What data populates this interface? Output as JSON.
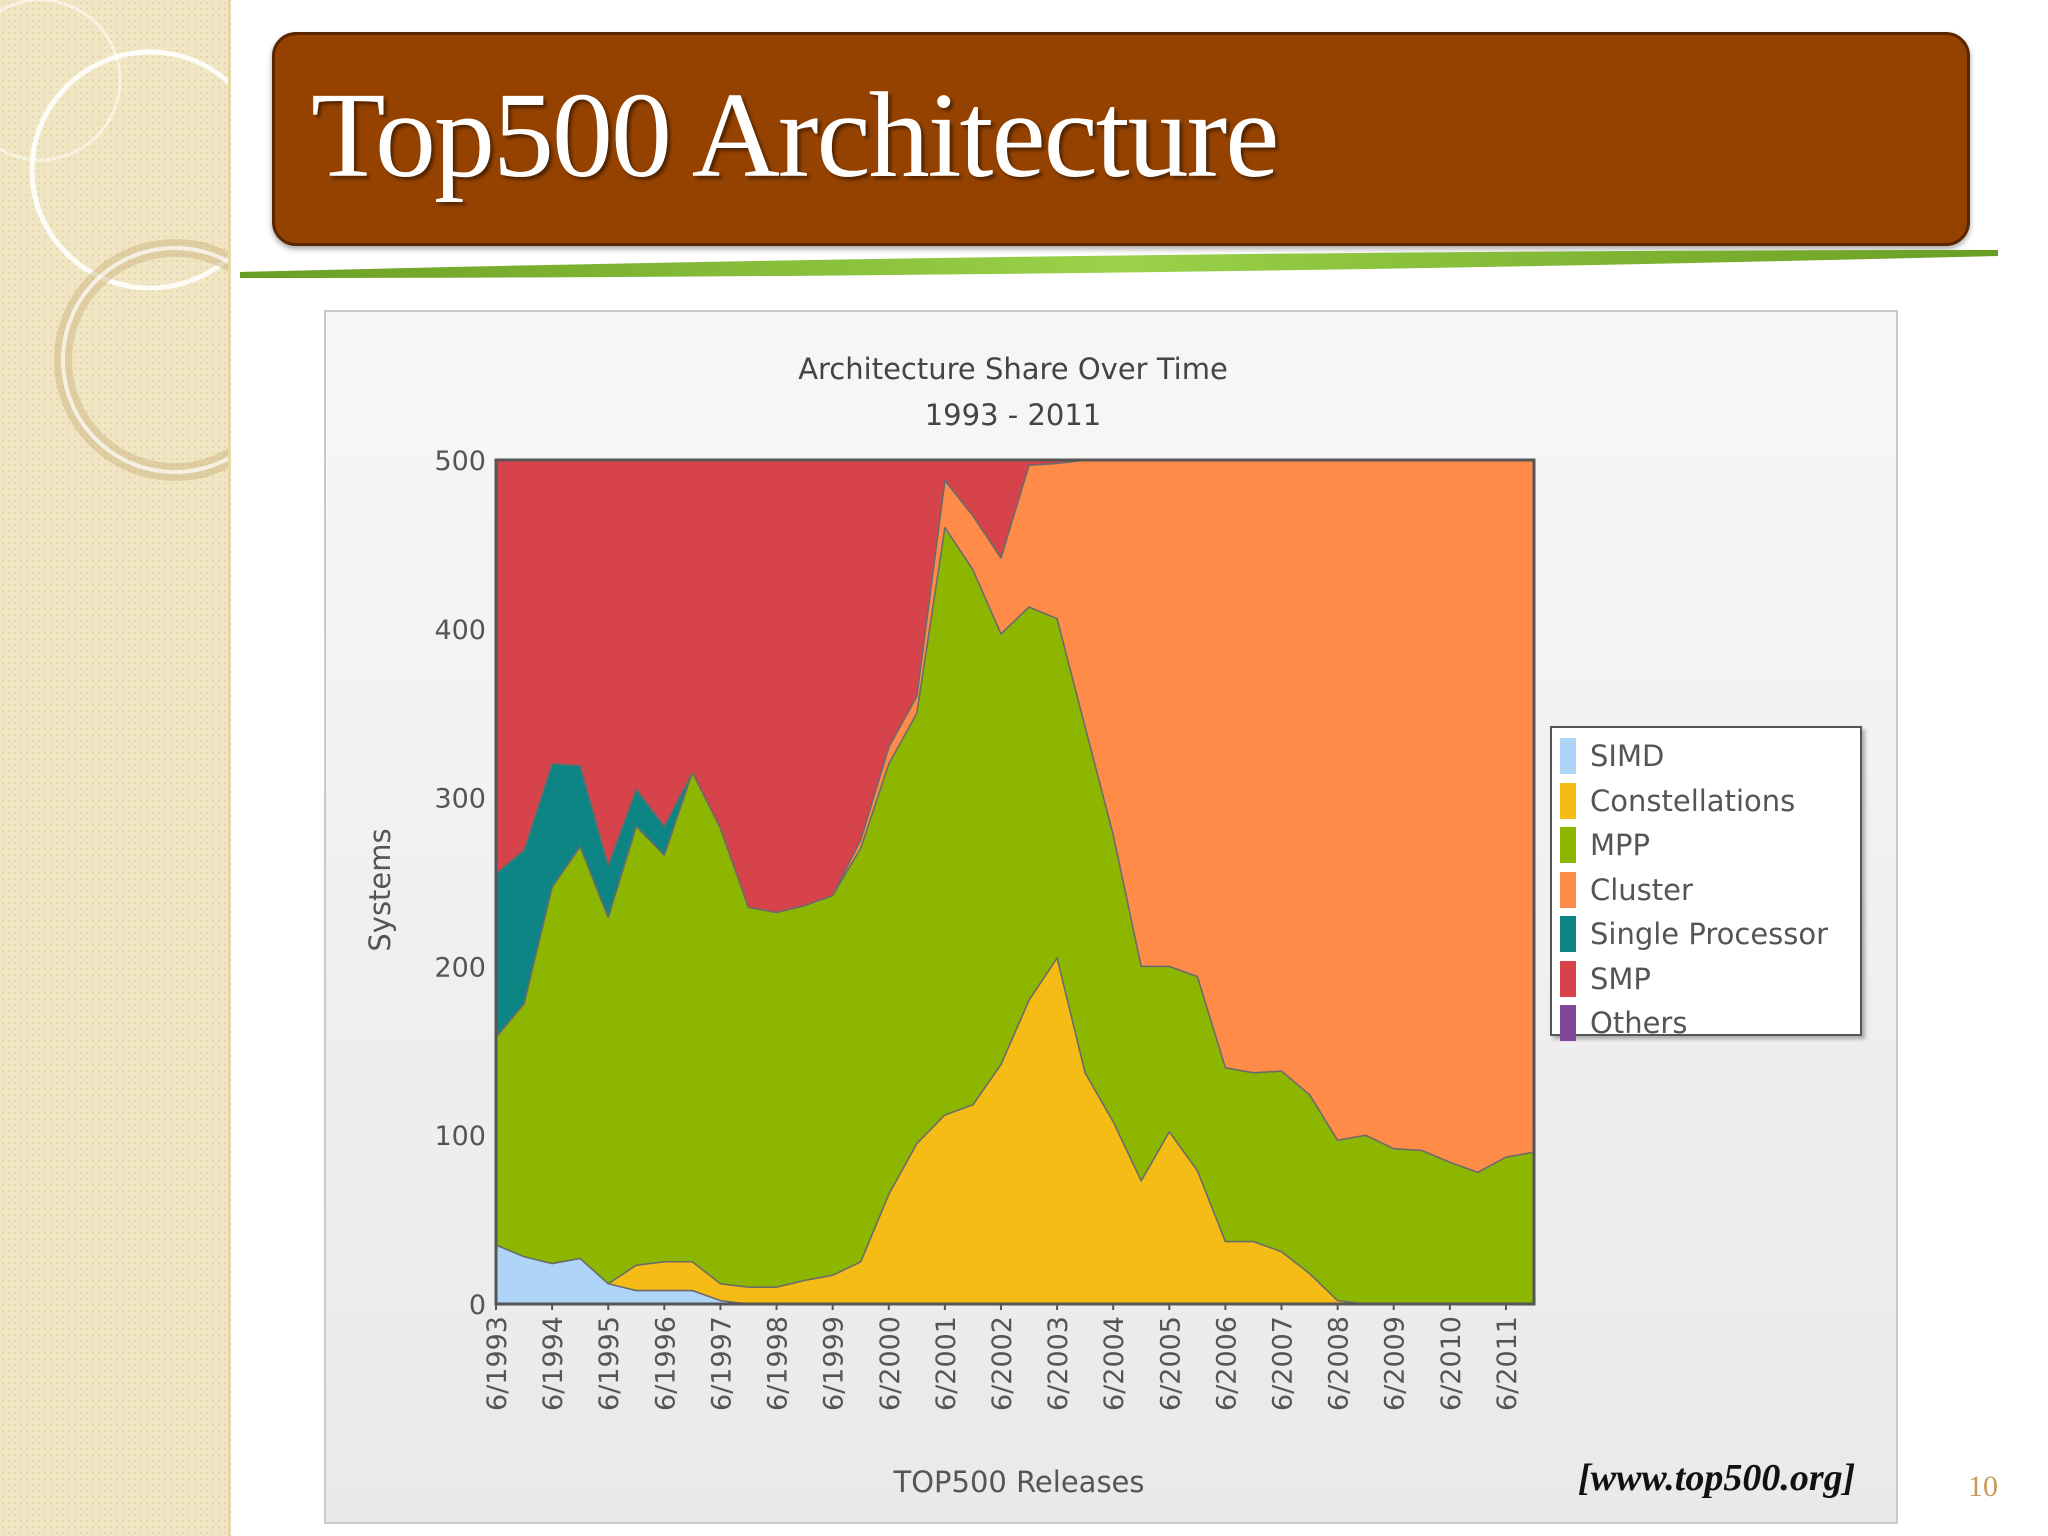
{
  "slide": {
    "title": "Top500 Architecture",
    "source": "[www.top500.org]",
    "page_number": "10"
  },
  "colors": {
    "title_bg": "#954200",
    "accent_green": "#8cc63f",
    "SIMD": "#aed4f8",
    "Constellations": "#f5bc16",
    "MPP": "#8db600",
    "Cluster": "#fe8c48",
    "Single Processor": "#0c8584",
    "SMP": "#d7434a",
    "Others": "#80479a"
  },
  "chart_data": {
    "type": "area",
    "stacked": true,
    "title": "Architecture Share Over Time",
    "subtitle": "1993 - 2011",
    "xlabel": "TOP500 Releases",
    "ylabel": "Systems",
    "ylim": [
      0,
      500
    ],
    "yticks": [
      0,
      100,
      200,
      300,
      400,
      500
    ],
    "x": [
      "6/1993",
      "11/1993",
      "6/1994",
      "11/1994",
      "6/1995",
      "11/1995",
      "6/1996",
      "11/1996",
      "6/1997",
      "11/1997",
      "6/1998",
      "11/1998",
      "6/1999",
      "11/1999",
      "6/2000",
      "11/2000",
      "6/2001",
      "11/2001",
      "6/2002",
      "11/2002",
      "6/2003",
      "11/2003",
      "6/2004",
      "11/2004",
      "6/2005",
      "11/2005",
      "6/2006",
      "11/2006",
      "6/2007",
      "11/2007",
      "6/2008",
      "11/2008",
      "6/2009",
      "11/2009",
      "6/2010",
      "11/2010",
      "6/2011",
      "11/2011"
    ],
    "x_tick_labels": [
      "6/1993",
      "6/1994",
      "6/1995",
      "6/1996",
      "6/1997",
      "6/1998",
      "6/1999",
      "6/2000",
      "6/2001",
      "6/2002",
      "6/2003",
      "6/2004",
      "6/2005",
      "6/2006",
      "6/2007",
      "6/2008",
      "6/2009",
      "6/2010",
      "6/2011"
    ],
    "legend_position": "right",
    "series": [
      {
        "name": "SIMD",
        "values": [
          35,
          28,
          24,
          27,
          12,
          8,
          8,
          8,
          2,
          0,
          0,
          0,
          0,
          0,
          0,
          0,
          0,
          0,
          0,
          0,
          0,
          0,
          0,
          0,
          0,
          0,
          0,
          0,
          0,
          0,
          0,
          0,
          0,
          0,
          0,
          0,
          0,
          0
        ]
      },
      {
        "name": "Constellations",
        "values": [
          0,
          0,
          0,
          0,
          0,
          15,
          17,
          17,
          10,
          10,
          10,
          14,
          17,
          25,
          65,
          95,
          112,
          118,
          142,
          180,
          205,
          137,
          108,
          73,
          102,
          79,
          37,
          37,
          31,
          18,
          2,
          0,
          0,
          0,
          0,
          0,
          0,
          0
        ]
      },
      {
        "name": "MPP",
        "values": [
          123,
          150,
          223,
          244,
          217,
          260,
          241,
          290,
          270,
          225,
          222,
          222,
          225,
          245,
          255,
          255,
          348,
          317,
          255,
          233,
          201,
          205,
          170,
          127,
          98,
          115,
          103,
          100,
          107,
          106,
          95,
          100,
          92,
          91,
          84,
          78,
          87,
          90
        ]
      },
      {
        "name": "Cluster",
        "values": [
          0,
          0,
          0,
          0,
          0,
          0,
          0,
          0,
          0,
          0,
          0,
          0,
          0,
          5,
          10,
          10,
          28,
          32,
          45,
          84,
          92,
          158,
          222,
          300,
          300,
          306,
          360,
          363,
          362,
          376,
          403,
          400,
          408,
          409,
          416,
          422,
          413,
          410
        ]
      },
      {
        "name": "Single Processor",
        "values": [
          97,
          91,
          73,
          48,
          31,
          22,
          17,
          0,
          0,
          0,
          0,
          0,
          0,
          0,
          0,
          0,
          0,
          0,
          0,
          0,
          0,
          0,
          0,
          0,
          0,
          0,
          0,
          0,
          0,
          0,
          0,
          0,
          0,
          0,
          0,
          0,
          0,
          0
        ]
      },
      {
        "name": "SMP",
        "values": [
          245,
          231,
          180,
          181,
          240,
          195,
          217,
          185,
          218,
          265,
          268,
          264,
          258,
          225,
          170,
          140,
          12,
          33,
          58,
          3,
          2,
          0,
          0,
          0,
          0,
          0,
          0,
          0,
          0,
          0,
          0,
          0,
          0,
          0,
          0,
          0,
          0,
          0
        ]
      },
      {
        "name": "Others",
        "values": [
          0,
          0,
          0,
          0,
          0,
          0,
          0,
          0,
          0,
          0,
          0,
          0,
          0,
          0,
          0,
          0,
          0,
          0,
          0,
          0,
          0,
          0,
          0,
          0,
          0,
          0,
          0,
          0,
          0,
          0,
          0,
          0,
          0,
          0,
          0,
          0,
          0,
          0
        ]
      }
    ]
  }
}
